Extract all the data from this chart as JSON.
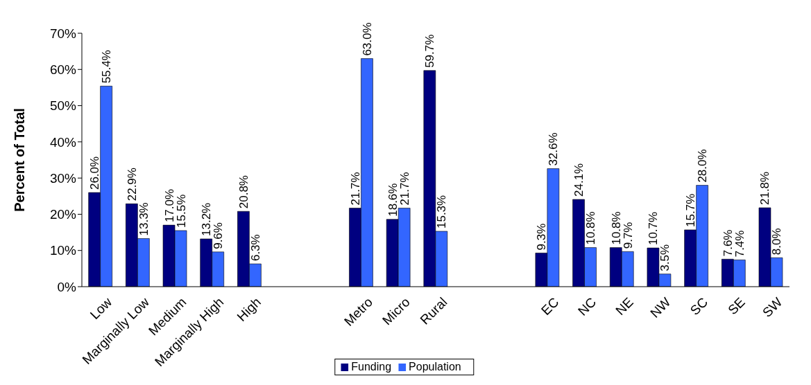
{
  "chart_data": {
    "type": "bar",
    "ylabel": "Percent of Total",
    "categories": [
      "Low",
      "Marginally Low",
      "Medium",
      "Marginally High",
      "High",
      null,
      null,
      "Metro",
      "Micro",
      "Rural",
      null,
      null,
      "EC",
      "NC",
      "NE",
      "NW",
      "SC",
      "SE",
      "SW"
    ],
    "series": [
      {
        "name": "Funding",
        "color": "#000080",
        "values": [
          26.0,
          22.9,
          17.0,
          13.2,
          20.8,
          null,
          null,
          21.7,
          18.6,
          59.7,
          null,
          null,
          9.3,
          24.1,
          10.8,
          10.7,
          15.7,
          7.6,
          21.8
        ],
        "value_labels": [
          "26.0%",
          "22.9%",
          "17.0%",
          "13.2%",
          "20.8%",
          null,
          null,
          "21.7%",
          "18.6%",
          "59.7%",
          null,
          null,
          "9.3%",
          "24.1%",
          "10.8%",
          "10.7%",
          "15.7%",
          "7.6%",
          "21.8%"
        ]
      },
      {
        "name": "Population",
        "color": "#3366ff",
        "values": [
          55.4,
          13.3,
          15.5,
          9.6,
          6.3,
          null,
          null,
          63.0,
          21.7,
          15.3,
          null,
          null,
          32.6,
          10.8,
          9.7,
          3.5,
          28.0,
          7.4,
          8.0
        ],
        "value_labels": [
          "55.4%",
          "13.3%",
          "15.5%",
          "9.6%",
          "6.3%",
          null,
          null,
          "63.0%",
          "21.7%",
          "15.3%",
          null,
          null,
          "32.6%",
          "10.8%",
          "9.7%",
          "3.5%",
          "28.0%",
          "7.4%",
          "8.0%"
        ]
      }
    ],
    "ylim": [
      0,
      70
    ],
    "yticks": [
      {
        "value": 0,
        "label": "0%"
      },
      {
        "value": 10,
        "label": "10%"
      },
      {
        "value": 20,
        "label": "20%"
      },
      {
        "value": 30,
        "label": "30%"
      },
      {
        "value": 40,
        "label": "40%"
      },
      {
        "value": 50,
        "label": "50%"
      },
      {
        "value": 60,
        "label": "60%"
      },
      {
        "value": 70,
        "label": "70%"
      }
    ],
    "legend": "bottom",
    "grid": false
  }
}
